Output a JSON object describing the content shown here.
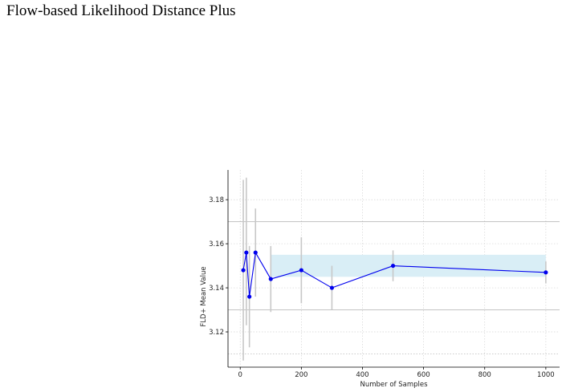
{
  "page": {
    "heading": "Flow-based Likelihood Distance Plus"
  },
  "colors": {
    "line": "#0000ee",
    "marker": "#0000ee",
    "error_bar": "#c8c8c8",
    "band": "#d9eef6",
    "grid": "#d3d3d3",
    "ref_line": "#bbbbbb",
    "axis": "#000000"
  },
  "chart_data": {
    "type": "line",
    "title": "",
    "xlabel": "Number of Samples",
    "ylabel": "FLD+ Mean Value",
    "xlim": [
      -40,
      1045
    ],
    "ylim": [
      3.104,
      3.1935
    ],
    "xticks": [
      0,
      200,
      400,
      600,
      800,
      1000
    ],
    "xtick_labels": [
      "0",
      "200",
      "400",
      "600",
      "800",
      "1000"
    ],
    "yticks": [
      3.12,
      3.14,
      3.16,
      3.18
    ],
    "ytick_labels": [
      "3.12",
      "3.14",
      "3.16",
      "3.18"
    ],
    "grid": "dotted",
    "series": [
      {
        "x": [
          10,
          20,
          30,
          50,
          100,
          200,
          300,
          500,
          1000
        ],
        "values": [
          3.148,
          3.156,
          3.136,
          3.156,
          3.144,
          3.148,
          3.14,
          3.15,
          3.147
        ],
        "error_low": [
          3.107,
          3.123,
          3.113,
          3.136,
          3.129,
          3.133,
          3.13,
          3.143,
          3.142
        ],
        "error_high": [
          3.189,
          3.19,
          3.159,
          3.176,
          3.159,
          3.163,
          3.15,
          3.157,
          3.152
        ]
      }
    ],
    "reference_lines": [
      3.17,
      3.13,
      3.11
    ],
    "band": {
      "x_range": [
        100,
        1000
      ],
      "y_range": [
        3.145,
        3.155
      ]
    }
  }
}
